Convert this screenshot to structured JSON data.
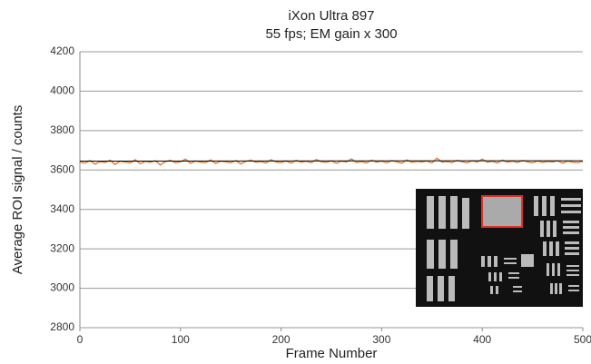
{
  "chart_data": {
    "type": "line",
    "title": "iXon Ultra 897",
    "subtitle": "55 fps; EM gain x 300",
    "x_label": "Frame Number",
    "y_label": "Average ROI signal / counts",
    "xlim": [
      0,
      500
    ],
    "xticks": [
      0,
      100,
      200,
      300,
      400,
      500
    ],
    "ylim": [
      2800,
      4200
    ],
    "yticks": [
      2800,
      3000,
      3200,
      3400,
      3600,
      3800,
      4000,
      4200
    ],
    "grid": true,
    "series": [
      {
        "color": "#e07b30",
        "x": [
          0,
          5,
          10,
          15,
          20,
          25,
          30,
          35,
          40,
          45,
          50,
          55,
          60,
          65,
          70,
          75,
          80,
          85,
          90,
          95,
          100,
          105,
          110,
          115,
          120,
          125,
          130,
          135,
          140,
          145,
          150,
          155,
          160,
          165,
          170,
          175,
          180,
          185,
          190,
          195,
          200,
          205,
          210,
          215,
          220,
          225,
          230,
          235,
          240,
          245,
          250,
          255,
          260,
          265,
          270,
          275,
          280,
          285,
          290,
          295,
          300,
          305,
          310,
          315,
          320,
          325,
          330,
          335,
          340,
          345,
          350,
          355,
          360,
          365,
          370,
          375,
          380,
          385,
          390,
          395,
          400,
          405,
          410,
          415,
          420,
          425,
          430,
          435,
          440,
          445,
          450,
          455,
          460,
          465,
          470,
          475,
          480,
          485,
          490,
          495,
          500
        ],
        "values": [
          3640,
          3635,
          3648,
          3630,
          3642,
          3638,
          3650,
          3628,
          3645,
          3641,
          3636,
          3652,
          3632,
          3644,
          3639,
          3647,
          3626,
          3643,
          3649,
          3637,
          3641,
          3655,
          3634,
          3646,
          3640,
          3638,
          3651,
          3633,
          3645,
          3642,
          3637,
          3648,
          3631,
          3644,
          3650,
          3639,
          3643,
          3636,
          3652,
          3641,
          3638,
          3646,
          3635,
          3649,
          3640,
          3644,
          3637,
          3653,
          3642,
          3639,
          3647,
          3634,
          3645,
          3641,
          3656,
          3638,
          3643,
          3636,
          3650,
          3640,
          3645,
          3637,
          3648,
          3642,
          3635,
          3651,
          3639,
          3644,
          3641,
          3646,
          3636,
          3660,
          3640,
          3643,
          3638,
          3649,
          3642,
          3637,
          3647,
          3641,
          3655,
          3639,
          3644,
          3636,
          3650,
          3640,
          3645,
          3638,
          3648,
          3642,
          3637,
          3646,
          3639,
          3643,
          3641,
          3647,
          3635,
          3645,
          3640,
          3638,
          3644
        ]
      },
      {
        "color": "#000000",
        "x": [
          0,
          500
        ],
        "values": [
          3645,
          3647
        ]
      }
    ]
  }
}
